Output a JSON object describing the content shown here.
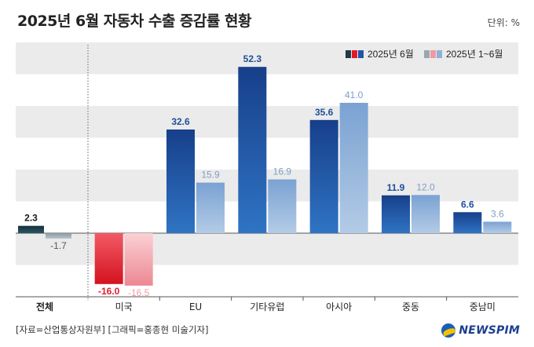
{
  "title": "2025년 6월 자동차 수출 증감률 현황",
  "unit": "단위: %",
  "source": "[자료=산업통상자원부] [그래픽=홍종현 미술기자]",
  "logo": "NEWSPIM",
  "colors": {
    "band": "#ebebeb",
    "june_blue": "#1f57a6",
    "cum_blue": "#8fb0d8",
    "june_red": "#e01a2b",
    "cum_red": "#f09aa2",
    "june_dark": "#1d3a45",
    "cum_gray": "#9aa7b0"
  },
  "chart_data": {
    "type": "bar",
    "categories": [
      "전체",
      "미국",
      "EU",
      "기타유럽",
      "아시아",
      "중동",
      "중남미"
    ],
    "series": [
      {
        "name": "2025년 6월",
        "values": [
          2.3,
          -16.0,
          32.6,
          52.3,
          35.6,
          11.9,
          6.6
        ]
      },
      {
        "name": "2025년 1~6월",
        "values": [
          -1.7,
          -16.5,
          15.9,
          16.9,
          41.0,
          12.0,
          3.6
        ]
      }
    ],
    "value_labels": [
      [
        "2.3",
        "-16.0",
        "32.6",
        "52.3",
        "35.6",
        "11.9",
        "6.6"
      ],
      [
        "-1.7",
        "-16.5",
        "15.9",
        "16.9",
        "41.0",
        "12.0",
        "3.6"
      ]
    ],
    "ylim": [
      -20,
      60
    ],
    "grid": "alternating bands",
    "legend": "top-right"
  }
}
